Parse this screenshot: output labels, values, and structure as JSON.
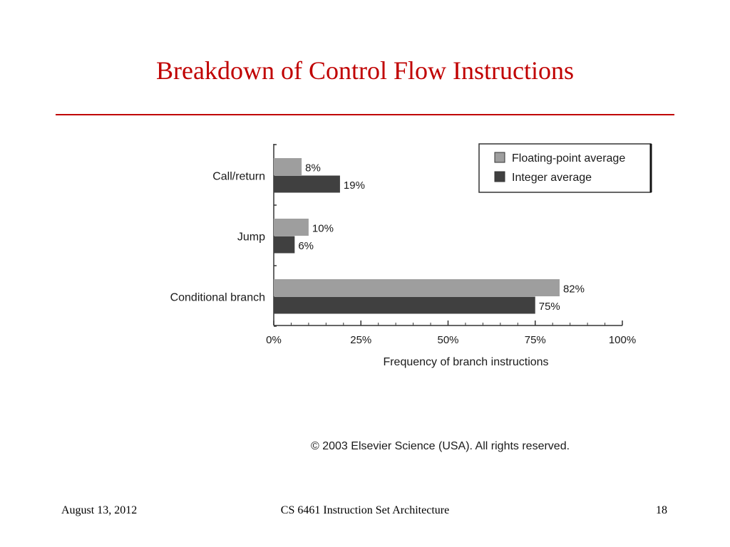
{
  "slide": {
    "title": "Breakdown of Control Flow Instructions",
    "copyright": "© 2003 Elsevier Science (USA). All rights reserved.",
    "footer_date": "August 13, 2012",
    "footer_course": "CS 6461 Instruction Set Architecture",
    "footer_page": "18"
  },
  "colors": {
    "title": "#c00000",
    "floating_point": "#9e9e9e",
    "integer": "#404040"
  },
  "chart_data": {
    "type": "bar",
    "orientation": "horizontal",
    "categories": [
      "Call/return",
      "Jump",
      "Conditional branch"
    ],
    "series": [
      {
        "name": "Floating-point average",
        "values": [
          8,
          10,
          82
        ],
        "labels": [
          "8%",
          "10%",
          "82%"
        ]
      },
      {
        "name": "Integer average",
        "values": [
          19,
          6,
          75
        ],
        "labels": [
          "19%",
          "6%",
          "75%"
        ]
      }
    ],
    "xlabel": "Frequency of branch instructions",
    "xlim": [
      0,
      100
    ],
    "xticks": [
      0,
      25,
      50,
      75,
      100
    ],
    "xtick_labels": [
      "0%",
      "25%",
      "50%",
      "75%",
      "100%"
    ],
    "legend_position": "top-right",
    "grid": false
  }
}
